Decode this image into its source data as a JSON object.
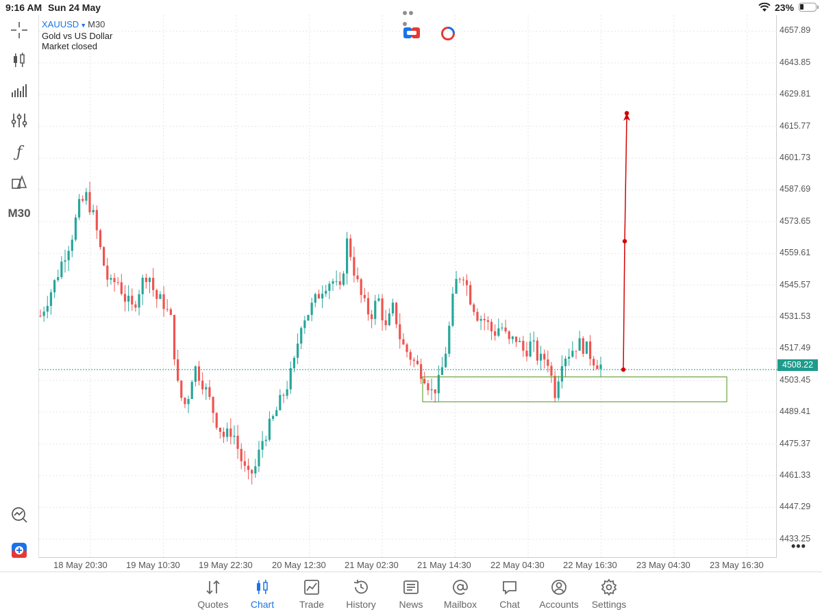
{
  "status_bar": {
    "time": "9:16 AM",
    "date": "Sun 24 May",
    "battery_pct": "23%"
  },
  "symbol": {
    "ticker": "XAUUSD",
    "timeframe": "M30",
    "description": "Gold vs US Dollar",
    "status": "Market closed"
  },
  "toolbar": {
    "timeframe_label": "M30"
  },
  "price_axis": [
    "4657.89",
    "4643.85",
    "4629.81",
    "4615.77",
    "4601.73",
    "4587.69",
    "4573.65",
    "4559.61",
    "4545.57",
    "4531.53",
    "4517.49",
    "4503.45",
    "4489.41",
    "4475.37",
    "4461.33",
    "4447.29",
    "4433.25"
  ],
  "current_price": "4508.22",
  "time_axis": [
    "18 May 20:30",
    "19 May 10:30",
    "19 May 22:30",
    "20 May 12:30",
    "21 May 02:30",
    "21 May 14:30",
    "22 May 04:30",
    "22 May 16:30",
    "23 May 04:30",
    "23 May 16:30"
  ],
  "tabs": [
    {
      "label": "Quotes",
      "icon": "quotes-icon"
    },
    {
      "label": "Chart",
      "icon": "chart-icon"
    },
    {
      "label": "Trade",
      "icon": "trade-icon"
    },
    {
      "label": "History",
      "icon": "history-icon"
    },
    {
      "label": "News",
      "icon": "news-icon"
    },
    {
      "label": "Mailbox",
      "icon": "mailbox-icon"
    },
    {
      "label": "Chat",
      "icon": "chat-icon"
    },
    {
      "label": "Accounts",
      "icon": "accounts-icon"
    },
    {
      "label": "Settings",
      "icon": "settings-icon"
    }
  ],
  "active_tab": "Chart",
  "colors": {
    "bull": "#26a69a",
    "bear": "#ef5350",
    "accent": "#1a73e8",
    "annotation": "#d50000",
    "zone": "#6aa33a"
  },
  "chart_data": {
    "type": "candlestick",
    "symbol": "XAUUSD",
    "timeframe": "M30",
    "x_labels": [
      "18 May 20:30",
      "19 May 10:30",
      "19 May 22:30",
      "20 May 12:30",
      "21 May 02:30",
      "21 May 14:30",
      "22 May 04:30",
      "22 May 16:30",
      "23 May 04:30",
      "23 May 16:30"
    ],
    "close_path": [
      4532,
      4540,
      4548,
      4558,
      4566,
      4580,
      4585,
      4575,
      4558,
      4545,
      4548,
      4540,
      4535,
      4545,
      4552,
      4540,
      4538,
      4530,
      4498,
      4492,
      4510,
      4504,
      4495,
      4485,
      4478,
      4482,
      4470,
      4460,
      4465,
      4478,
      4484,
      4492,
      4500,
      4510,
      4530,
      4534,
      4540,
      4546,
      4548,
      4542,
      4566,
      4550,
      4538,
      4532,
      4540,
      4526,
      4536,
      4520,
      4515,
      4510,
      4506,
      4498,
      4503,
      4520,
      4546,
      4552,
      4540,
      4532,
      4530,
      4524,
      4528,
      4520,
      4522,
      4516,
      4520,
      4512,
      4514,
      4498,
      4514,
      4516,
      4520,
      4518,
      4513,
      4510
    ],
    "candles_count": 160,
    "current_price": 4508.22,
    "y_axis": {
      "min": 4425,
      "max": 4665,
      "ticks": [
        4657.89,
        4643.85,
        4629.81,
        4615.77,
        4601.73,
        4587.69,
        4573.65,
        4559.61,
        4545.57,
        4531.53,
        4517.49,
        4503.45,
        4489.41,
        4475.37,
        4461.33,
        4447.29,
        4433.25
      ]
    },
    "annotations": {
      "arrow_from": 4508.22,
      "arrow_mid": 4565,
      "arrow_to": 4621,
      "zone_top": 4505,
      "zone_bottom": 4494
    },
    "grid": true
  }
}
